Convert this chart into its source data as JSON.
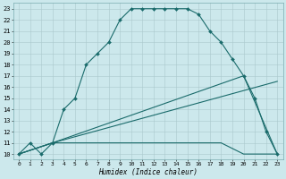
{
  "xlabel": "Humidex (Indice chaleur)",
  "xlim": [
    -0.5,
    23.5
  ],
  "ylim": [
    9.5,
    23.5
  ],
  "xticks": [
    0,
    1,
    2,
    3,
    4,
    5,
    6,
    7,
    8,
    9,
    10,
    11,
    12,
    13,
    14,
    15,
    16,
    17,
    18,
    19,
    20,
    21,
    22,
    23
  ],
  "yticks": [
    10,
    11,
    12,
    13,
    14,
    15,
    16,
    17,
    18,
    19,
    20,
    21,
    22,
    23
  ],
  "background_color": "#cce8ec",
  "grid_color": "#aac8cc",
  "line_color": "#1a6b6b",
  "line1_x": [
    0,
    1,
    2,
    3,
    4,
    5,
    6,
    7,
    8,
    9,
    10,
    11,
    12,
    13,
    14,
    15,
    16,
    17,
    18,
    19,
    20,
    21,
    22,
    23
  ],
  "line1_y": [
    10,
    11,
    10,
    11,
    14,
    15,
    18,
    19,
    20,
    22,
    23,
    23,
    23,
    23,
    23,
    23,
    22.5,
    21,
    20,
    18.5,
    17,
    15,
    12,
    10
  ],
  "line2_x": [
    0,
    3,
    4,
    5,
    6,
    7,
    8,
    9,
    10,
    11,
    12,
    13,
    14,
    15,
    16,
    17,
    18,
    20,
    21,
    22,
    23
  ],
  "line2_y": [
    10,
    11,
    11,
    11,
    11,
    11,
    11,
    11,
    11,
    11,
    11,
    11,
    11,
    11,
    11,
    11,
    11,
    10,
    10,
    10,
    10
  ],
  "line3_x": [
    0,
    3,
    23
  ],
  "line3_y": [
    10,
    11,
    16.5
  ],
  "line4_x": [
    0,
    3,
    20,
    23
  ],
  "line4_y": [
    10,
    11,
    17,
    10
  ]
}
